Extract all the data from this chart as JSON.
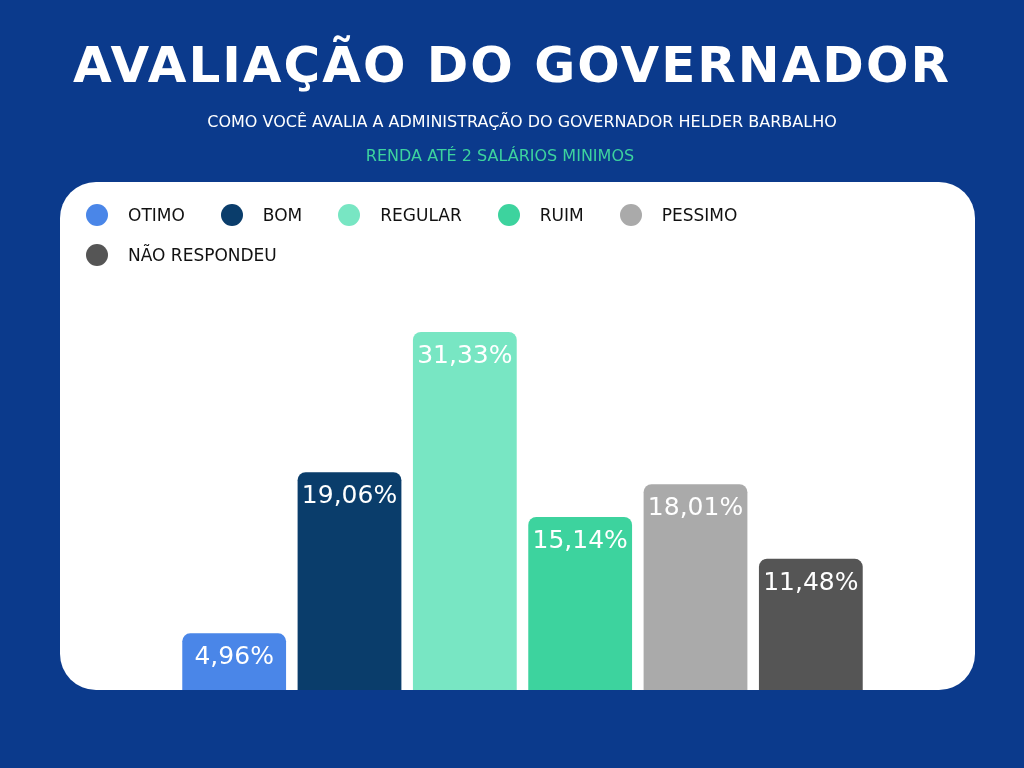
{
  "chart_data": {
    "type": "bar",
    "title": "AVALIAÇÃO DO GOVERNADOR",
    "subtitle": "COMO VOCÊ AVALIA A ADMINISTRAÇÃO DO GOVERNADOR HELDER BARBALHO",
    "annotations": [
      "RENDA ATÉ 2 SALÁRIOS MINIMOS"
    ],
    "categories": [
      null
    ],
    "legend": "top left",
    "tick_labels": false,
    "series": [
      {
        "name": "OTIMO",
        "color": "#4a86e8",
        "values": [
          4.96
        ],
        "value_labels": [
          "4,96%"
        ]
      },
      {
        "name": "BOM",
        "color": "#0a3d6b",
        "values": [
          19.06
        ],
        "value_labels": [
          "19,06%"
        ]
      },
      {
        "name": "REGULAR",
        "color": "#78e6c3",
        "values": [
          31.33
        ],
        "value_labels": [
          "31,33%"
        ]
      },
      {
        "name": "RUIM",
        "color": "#3dd39e",
        "values": [
          15.14
        ],
        "value_labels": [
          "15,14%"
        ]
      },
      {
        "name": "PESSIMO",
        "color": "#aaaaaa",
        "values": [
          18.01
        ],
        "value_labels": [
          "18,01%"
        ]
      },
      {
        "name": "NÃO RESPONDEU",
        "color": "#555555",
        "values": [
          11.48
        ],
        "value_labels": [
          "11,48%"
        ]
      }
    ]
  }
}
